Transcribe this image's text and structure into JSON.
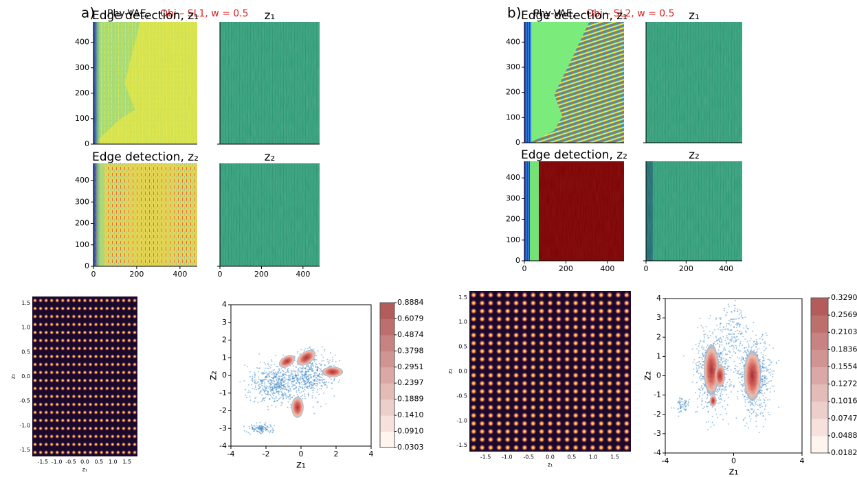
{
  "panels": [
    {
      "label": "a)",
      "prefix": "Phy-VAE, ",
      "highlight": "Obj – SL1, w = 0.5",
      "images": [
        {
          "title": "Edge detection, z₁",
          "yticks": [
            "0",
            "100",
            "200",
            "300",
            "400"
          ],
          "xticks": []
        },
        {
          "title": "z₁",
          "yticks": [],
          "xticks": []
        },
        {
          "title": "Edge detection, z₂",
          "yticks": [
            "0",
            "100",
            "200",
            "300",
            "400"
          ],
          "xticks": [
            "0",
            "200",
            "400"
          ]
        },
        {
          "title": "z₂",
          "yticks": [],
          "xticks": [
            "0",
            "200",
            "400"
          ]
        }
      ],
      "latent": {
        "xlabel": "z₁",
        "ylabel": "z₂",
        "xticks": [
          "-1.5",
          "-1.0",
          "-0.5",
          "0.0",
          "0.5",
          "1.0",
          "1.5"
        ],
        "yticks": [
          "-1.5",
          "-1.0",
          "-0.5",
          "0.0",
          "0.5",
          "1.0",
          "1.5"
        ]
      },
      "density": {
        "xlabel": "z₁",
        "ylabel": "z₂",
        "xticks": [
          "-4",
          "-2",
          "0",
          "2",
          "4"
        ],
        "yticks": [
          "-4",
          "-3",
          "-2",
          "-1",
          "0",
          "1",
          "2",
          "3",
          "4"
        ],
        "colorbar": [
          "0.0303",
          "0.0910",
          "0.1410",
          "0.1889",
          "0.2397",
          "0.2951",
          "0.3798",
          "0.4874",
          "0.6079",
          "0.8884"
        ]
      }
    },
    {
      "label": "b)",
      "prefix": "Phy-VAE, ",
      "highlight": "Obj – SL2, w = 0.5",
      "images": [
        {
          "title": "Edge detection, z₁",
          "yticks": [
            "0",
            "100",
            "200",
            "300",
            "400"
          ],
          "xticks": []
        },
        {
          "title": "z₁",
          "yticks": [],
          "xticks": []
        },
        {
          "title": "Edge detection, z₂",
          "yticks": [
            "0",
            "100",
            "200",
            "300",
            "400"
          ],
          "xticks": [
            "0",
            "200",
            "400"
          ]
        },
        {
          "title": "z₂",
          "yticks": [],
          "xticks": [
            "0",
            "200",
            "400"
          ]
        }
      ],
      "latent": {
        "xlabel": "z₁",
        "ylabel": "z₂",
        "xticks": [
          "-1.5",
          "-1.0",
          "-0.5",
          "0.0",
          "0.5",
          "1.0",
          "1.5"
        ],
        "yticks": [
          "-1.5",
          "-1.0",
          "-0.5",
          "0.0",
          "0.5",
          "1.0",
          "1.5"
        ]
      },
      "density": {
        "xlabel": "z₁",
        "ylabel": "z₂",
        "xticks": [
          "-4",
          "0",
          "4"
        ],
        "yticks": [
          "-4",
          "-3",
          "-2",
          "-1",
          "0",
          "1",
          "2",
          "3",
          "4"
        ],
        "colorbar": [
          "0.0182",
          "0.0488",
          "0.0747",
          "0.1016",
          "0.1272",
          "0.1554",
          "0.1836",
          "0.2103",
          "0.2569",
          "0.3290"
        ]
      }
    }
  ]
}
